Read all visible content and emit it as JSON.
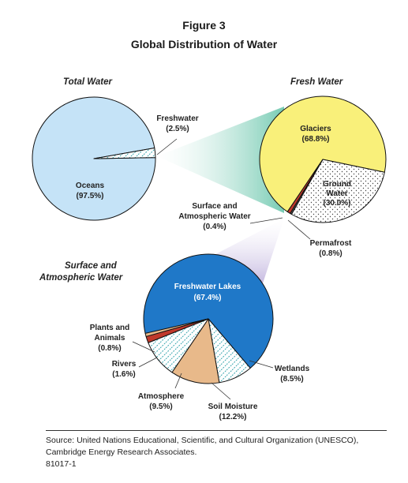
{
  "figure_number": "Figure 3",
  "title": "Global Distribution of Water",
  "source": {
    "line1": "Source: United Nations Educational, Scientific, and Cultural Organization (UNESCO),",
    "line2": "Cambridge Energy Research Associates.",
    "id": "81017-1"
  },
  "colors": {
    "oceans": "#c5e3f7",
    "freshwater": "#ffffff",
    "glaciers": "#f9f07a",
    "ground_water": "#ffffff",
    "surface_atmospheric": "#555555",
    "permafrost": "#c0392b",
    "freshwater_lakes": "#1f78c8",
    "wetlands": "#ffffff",
    "soil_moisture": "#e8b98a",
    "atmosphere": "#ffffff",
    "rivers": "#c0392b",
    "plants_animals": "#e8b98a",
    "connector_teal": "#5fc2a6",
    "connector_purple": "#b7a8d9",
    "pattern_teal": "#3aa7b0"
  },
  "chart_data": [
    {
      "type": "pie",
      "title": "Total Water",
      "slices": [
        {
          "label": "Oceans",
          "value_label": "(97.5%)",
          "value": 97.5
        },
        {
          "label": "Freshwater",
          "value_label": "(2.5%)",
          "value": 2.5
        }
      ]
    },
    {
      "type": "pie",
      "title": "Fresh Water",
      "slices": [
        {
          "label": "Glaciers",
          "value_label": "(68.8%)",
          "value": 68.8
        },
        {
          "label": "Ground Water",
          "value_label": "(30.0%)",
          "value": 30.0
        },
        {
          "label": "Surface and Atmospheric Water",
          "value_label": "(0.4%)",
          "value": 0.4
        },
        {
          "label": "Permafrost",
          "value_label": "(0.8%)",
          "value": 0.8
        }
      ]
    },
    {
      "type": "pie",
      "title": "Surface and Atmospheric Water",
      "slices": [
        {
          "label": "Freshwater Lakes",
          "value_label": "(67.4%)",
          "value": 67.4
        },
        {
          "label": "Wetlands",
          "value_label": "(8.5%)",
          "value": 8.5
        },
        {
          "label": "Soil Moisture",
          "value_label": "(12.2%)",
          "value": 12.2
        },
        {
          "label": "Atmosphere",
          "value_label": "(9.5%)",
          "value": 9.5
        },
        {
          "label": "Rivers",
          "value_label": "(1.6%)",
          "value": 1.6
        },
        {
          "label": "Plants and Animals",
          "value_label": "(0.8%)",
          "value": 0.8
        }
      ]
    }
  ]
}
